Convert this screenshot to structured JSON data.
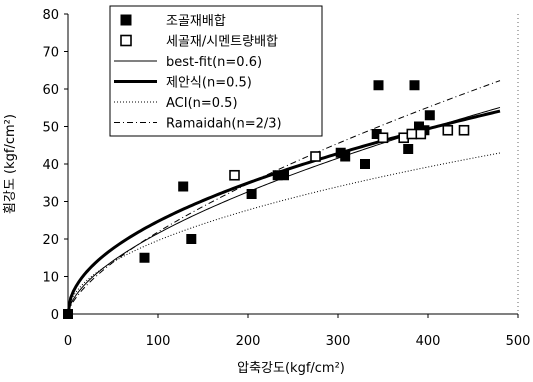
{
  "chart_data": {
    "type": "scatter",
    "title": "",
    "xlabel": "압축강도(kgf/cm²)",
    "ylabel": "휨강도 (kgf/cm²)",
    "xlim": [
      0,
      500
    ],
    "ylim": [
      0,
      80
    ],
    "x_ticks": [
      "0",
      "100",
      "200",
      "300",
      "400",
      "500"
    ],
    "y_ticks": [
      "0",
      "10",
      "20",
      "30",
      "40",
      "50",
      "60",
      "70",
      "80"
    ],
    "grid": false,
    "legend_position": "top-left",
    "series": [
      {
        "name": "조골재배합",
        "kind": "scatter",
        "marker": "filled-square",
        "points": [
          [
            0,
            0
          ],
          [
            85,
            15
          ],
          [
            128,
            34
          ],
          [
            137,
            20
          ],
          [
            204,
            32
          ],
          [
            233,
            37
          ],
          [
            240,
            37
          ],
          [
            303,
            43
          ],
          [
            308,
            42
          ],
          [
            330,
            40
          ],
          [
            343,
            48
          ],
          [
            345,
            61
          ],
          [
            378,
            44
          ],
          [
            385,
            61
          ],
          [
            390,
            50
          ],
          [
            396,
            49
          ],
          [
            402,
            53
          ]
        ]
      },
      {
        "name": "세골재/시멘트량배합",
        "kind": "scatter",
        "marker": "open-square",
        "points": [
          [
            185,
            37
          ],
          [
            275,
            42
          ],
          [
            350,
            47
          ],
          [
            373,
            47
          ],
          [
            382,
            48
          ],
          [
            392,
            48
          ],
          [
            422,
            49
          ],
          [
            440,
            49
          ]
        ]
      },
      {
        "name": "best-fit(n=0.6)",
        "kind": "line",
        "style": "thin-solid",
        "coefficient": 1.356,
        "exponent": 0.6,
        "x_range": [
          0,
          480
        ]
      },
      {
        "name": "제안식(n=0.5)",
        "kind": "line",
        "style": "thick-solid",
        "coefficient": 2.47,
        "exponent": 0.5,
        "x_range": [
          0,
          480
        ]
      },
      {
        "name": "ACI(n=0.5)",
        "kind": "line",
        "style": "dotted",
        "coefficient": 1.96,
        "exponent": 0.5,
        "x_range": [
          0,
          480
        ]
      },
      {
        "name": "Ramaidah(n=2/3)",
        "kind": "line",
        "style": "dash-dot",
        "coefficient": 1.015,
        "exponent": 0.6667,
        "x_range": [
          0,
          480
        ]
      }
    ]
  }
}
